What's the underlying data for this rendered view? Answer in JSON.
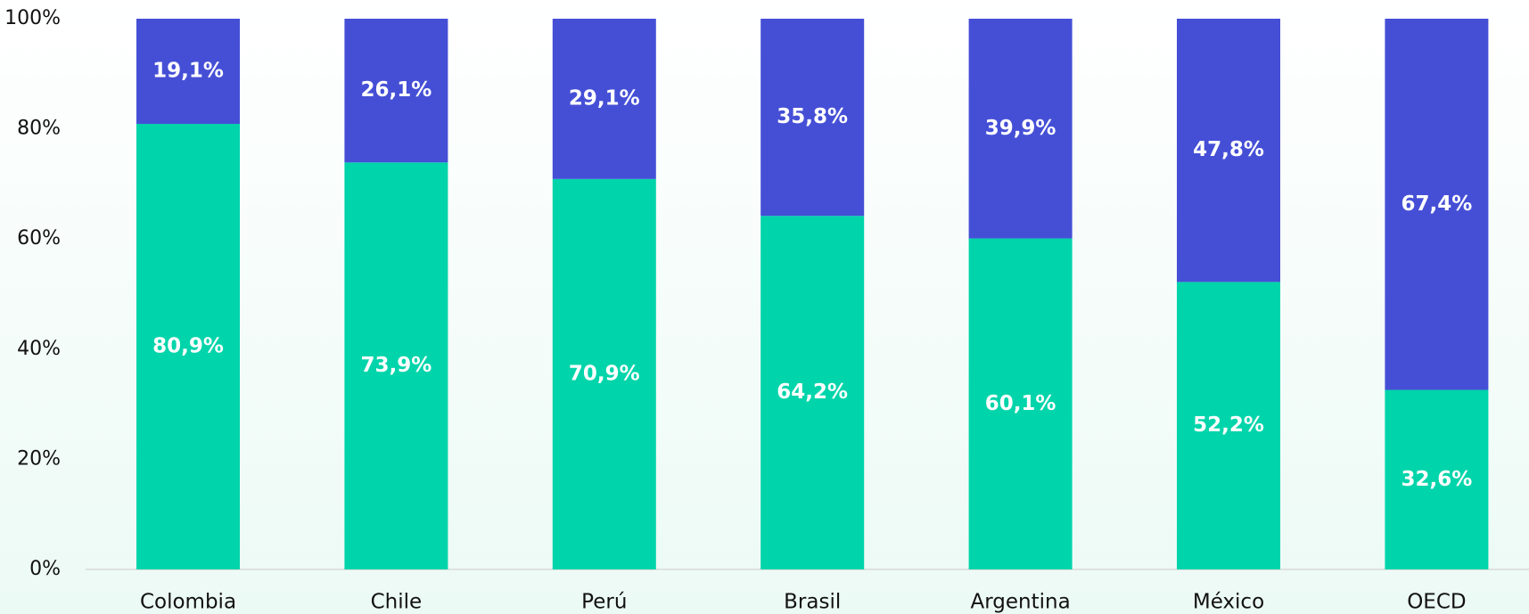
{
  "chart_data": {
    "type": "bar",
    "stacked": true,
    "categories": [
      "Colombia",
      "Chile",
      "Perú",
      "Brasil",
      "Argentina",
      "México",
      "OECD"
    ],
    "series": [
      {
        "color": "#00d4aa",
        "values": [
          80.9,
          73.9,
          70.9,
          64.2,
          60.1,
          52.2,
          32.6
        ],
        "value_labels": [
          "80,9%",
          "73,9%",
          "70,9%",
          "64,2%",
          "60,1%",
          "52,2%",
          "32,6%"
        ]
      },
      {
        "color": "#454fd6",
        "values": [
          19.1,
          26.1,
          29.1,
          35.8,
          39.9,
          47.8,
          67.4
        ],
        "value_labels": [
          "19,1%",
          "26,1%",
          "29,1%",
          "35,8%",
          "39,9%",
          "47,8%",
          "67,4%"
        ]
      }
    ],
    "ylim": [
      0,
      100
    ],
    "yticks": [
      {
        "value": 0,
        "label": "0%"
      },
      {
        "value": 20,
        "label": "20%"
      },
      {
        "value": 40,
        "label": "40%"
      },
      {
        "value": 60,
        "label": "60%"
      },
      {
        "value": 80,
        "label": "80%"
      },
      {
        "value": 100,
        "label": "100%"
      }
    ],
    "grid": false
  }
}
